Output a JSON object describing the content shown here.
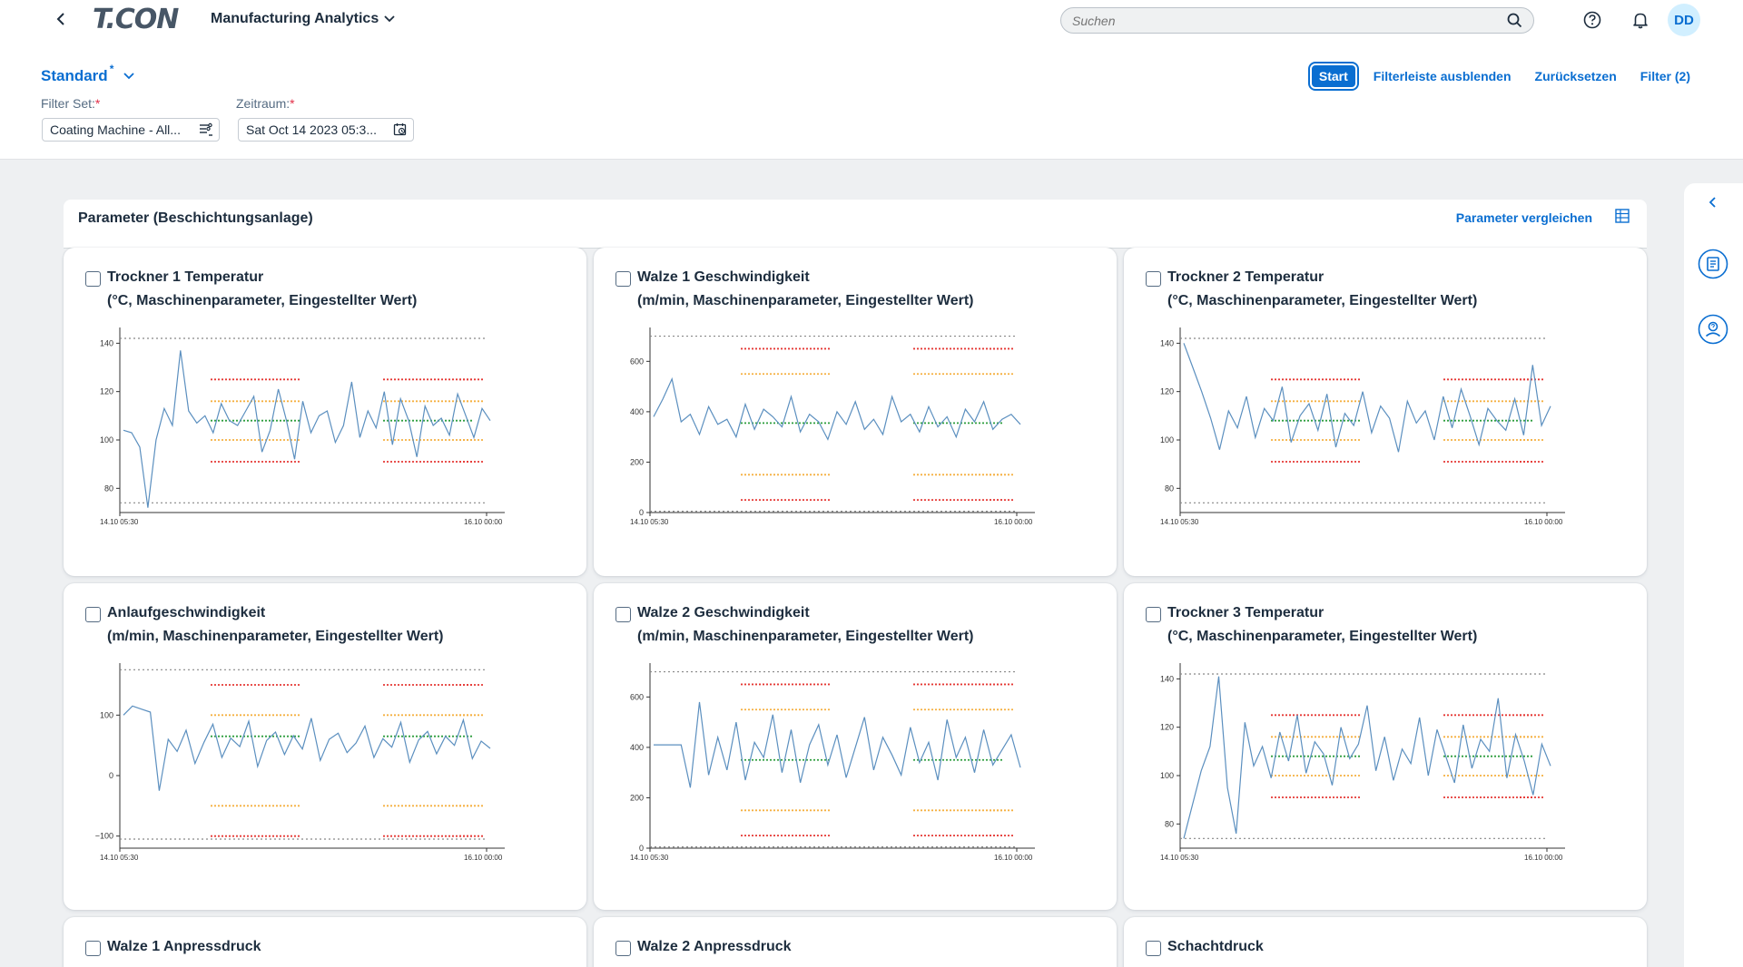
{
  "shell": {
    "logo_text": "T.CON",
    "app_title": "Manufacturing Analytics",
    "search_placeholder": "Suchen",
    "avatar_initials": "DD"
  },
  "header": {
    "variant_name": "Standard",
    "variant_modified_marker": "*",
    "actions": {
      "start": "Start",
      "hide_filterbar": "Filterleiste ausblenden",
      "reset": "Zurücksetzen",
      "filter": "Filter (2)"
    },
    "filters": [
      {
        "label": "Filter Set:",
        "required_marker": "*",
        "value": "Coating Machine - All..."
      },
      {
        "label": "Zeitraum:",
        "required_marker": "*",
        "value": "Sat Oct 14 2023 05:3..."
      }
    ]
  },
  "panel": {
    "title": "Parameter (Beschichtungsanlage)",
    "compare_link": "Parameter vergleichen"
  },
  "colors": {
    "accent": "#0a6ed1",
    "series_line": "#5b8fbf",
    "limit_red": "#e53935",
    "limit_orange": "#f5b041",
    "target_green": "#2e9e3e",
    "reference_gray": "#888888"
  },
  "icons": {
    "back": "chevron-left-icon",
    "title_menu": "chevron-down-icon",
    "search": "search-icon",
    "help": "help-icon",
    "notifications": "bell-icon",
    "value_help": "value-help-icon",
    "calendar": "calendar-icon",
    "table": "table-icon",
    "side_collapse": "chevron-left-icon",
    "side_report": "report-icon",
    "side_user_help": "user-help-icon"
  },
  "cards": [
    {
      "title": "Trockner 1 Temperatur",
      "subtitle": "(°C, Maschinenparameter, Eingestellter Wert)",
      "checked": false
    },
    {
      "title": "Walze 1 Geschwindigkeit",
      "subtitle": "(m/min, Maschinenparameter, Eingestellter Wert)",
      "checked": false
    },
    {
      "title": "Trockner 2 Temperatur",
      "subtitle": "(°C, Maschinenparameter, Eingestellter Wert)",
      "checked": false
    },
    {
      "title": "Anlaufgeschwindigkeit",
      "subtitle": "(m/min, Maschinenparameter, Eingestellter Wert)",
      "checked": false
    },
    {
      "title": "Walze 2 Geschwindigkeit",
      "subtitle": "(m/min, Maschinenparameter, Eingestellter Wert)",
      "checked": false
    },
    {
      "title": "Trockner 3 Temperatur",
      "subtitle": "(°C, Maschinenparameter, Eingestellter Wert)",
      "checked": false
    },
    {
      "title": "Walze 1 Anpressdruck",
      "subtitle": "",
      "checked": false
    },
    {
      "title": "Walze 2 Anpressdruck",
      "subtitle": "",
      "checked": false
    },
    {
      "title": "Schachtdruck",
      "subtitle": "",
      "checked": false
    }
  ],
  "chart_data": [
    {
      "type": "line",
      "x_start": "14.10 05:30",
      "x_end": "16.10 00:00",
      "yticks": [
        80,
        100,
        120,
        140
      ],
      "ylim": [
        70,
        145
      ],
      "reference_lines": [
        142,
        74
      ],
      "limit_bands": [
        {
          "segment": 1,
          "upper_red": 125,
          "upper_orange": 116,
          "target": 108,
          "lower_orange": 100,
          "lower_red": 91
        },
        {
          "segment": 2,
          "upper_red": 125,
          "upper_orange": 116,
          "target": 108,
          "lower_orange": 100,
          "lower_red": 91
        }
      ],
      "series": [
        {
          "values": [
            104,
            103,
            97,
            72,
            100,
            113,
            106,
            137,
            112,
            107,
            110,
            103,
            115,
            108,
            106,
            112,
            118,
            95,
            104,
            121,
            108,
            92,
            116,
            103,
            110,
            112,
            99,
            106,
            124,
            101,
            112,
            105,
            120,
            98,
            117,
            108,
            93,
            114,
            106,
            109,
            102,
            119,
            110,
            101,
            113,
            108
          ]
        }
      ]
    },
    {
      "type": "line",
      "x_start": "14.10 05:30",
      "x_end": "16.10 00:00",
      "yticks": [
        0,
        200,
        400,
        600
      ],
      "ylim": [
        0,
        720
      ],
      "reference_lines": [
        700,
        5
      ],
      "limit_bands": [
        {
          "segment": 1,
          "upper_red": 650,
          "upper_orange": 550,
          "target": 355,
          "lower_orange": 150,
          "lower_red": 50
        },
        {
          "segment": 2,
          "upper_red": 650,
          "upper_orange": 550,
          "target": 355,
          "lower_orange": 150,
          "lower_red": 50
        }
      ],
      "series": [
        {
          "values": [
            380,
            450,
            530,
            360,
            390,
            310,
            420,
            350,
            370,
            300,
            430,
            330,
            410,
            380,
            340,
            460,
            320,
            390,
            360,
            290,
            400,
            350,
            440,
            330,
            370,
            310,
            460,
            360,
            390,
            320,
            420,
            340,
            380,
            300,
            410,
            360,
            440,
            330,
            370,
            390,
            350
          ]
        }
      ]
    },
    {
      "type": "line",
      "x_start": "14.10 05:30",
      "x_end": "16.10 00:00",
      "yticks": [
        80,
        100,
        120,
        140
      ],
      "ylim": [
        70,
        145
      ],
      "reference_lines": [
        142,
        74
      ],
      "limit_bands": [
        {
          "segment": 1,
          "upper_red": 125,
          "upper_orange": 116,
          "target": 108,
          "lower_orange": 100,
          "lower_red": 91
        },
        {
          "segment": 2,
          "upper_red": 125,
          "upper_orange": 116,
          "target": 108,
          "lower_orange": 100,
          "lower_red": 91
        }
      ],
      "series": [
        {
          "values": [
            140,
            130,
            120,
            109,
            96,
            112,
            105,
            118,
            101,
            113,
            108,
            122,
            99,
            110,
            115,
            104,
            119,
            97,
            111,
            106,
            120,
            103,
            114,
            109,
            95,
            116,
            107,
            112,
            100,
            118,
            105,
            121,
            110,
            98,
            113,
            108,
            104,
            117,
            102,
            131,
            106,
            114
          ]
        }
      ]
    },
    {
      "type": "line",
      "x_start": "14.10 05:30",
      "x_end": "16.10 00:00",
      "yticks": [
        -100,
        0,
        100
      ],
      "ylim": [
        -120,
        180
      ],
      "reference_lines": [
        175,
        -105
      ],
      "limit_bands": [
        {
          "segment": 1,
          "upper_red": 150,
          "upper_orange": 100,
          "target": 65,
          "lower_orange": -50,
          "lower_red": -100
        },
        {
          "segment": 2,
          "upper_red": 150,
          "upper_orange": 100,
          "target": 65,
          "lower_orange": -50,
          "lower_red": -100
        }
      ],
      "series": [
        {
          "values": [
            100,
            115,
            110,
            105,
            -25,
            60,
            40,
            75,
            20,
            55,
            85,
            30,
            62,
            48,
            90,
            15,
            58,
            72,
            35,
            66,
            44,
            95,
            25,
            60,
            70,
            38,
            54,
            82,
            30,
            61,
            47,
            88,
            22,
            59,
            73,
            36,
            65,
            50,
            92,
            28,
            57,
            45
          ]
        }
      ]
    },
    {
      "type": "line",
      "x_start": "14.10 05:30",
      "x_end": "16.10 00:00",
      "yticks": [
        0,
        200,
        400,
        600
      ],
      "ylim": [
        0,
        720
      ],
      "reference_lines": [
        700,
        5
      ],
      "limit_bands": [
        {
          "segment": 1,
          "upper_red": 650,
          "upper_orange": 550,
          "target": 350,
          "lower_orange": 150,
          "lower_red": 50
        },
        {
          "segment": 2,
          "upper_red": 650,
          "upper_orange": 550,
          "target": 350,
          "lower_orange": 150,
          "lower_red": 50
        }
      ],
      "series": [
        {
          "values": [
            410,
            410,
            410,
            410,
            240,
            580,
            290,
            440,
            310,
            500,
            270,
            420,
            360,
            530,
            300,
            470,
            260,
            410,
            490,
            330,
            450,
            280,
            400,
            520,
            310,
            440,
            370,
            290,
            480,
            340,
            420,
            270,
            510,
            360,
            440,
            300,
            470,
            330,
            390,
            450,
            320
          ]
        }
      ]
    },
    {
      "type": "line",
      "x_start": "14.10 05:30",
      "x_end": "16.10 00:00",
      "yticks": [
        80,
        100,
        120,
        140
      ],
      "ylim": [
        70,
        145
      ],
      "reference_lines": [
        142,
        74
      ],
      "limit_bands": [
        {
          "segment": 1,
          "upper_red": 125,
          "upper_orange": 116,
          "target": 108,
          "lower_orange": 100,
          "lower_red": 91
        },
        {
          "segment": 2,
          "upper_red": 125,
          "upper_orange": 116,
          "target": 108,
          "lower_orange": 100,
          "lower_red": 91
        }
      ],
      "series": [
        {
          "values": [
            74,
            88,
            102,
            112,
            141,
            95,
            76,
            122,
            104,
            112,
            99,
            118,
            106,
            125,
            101,
            114,
            109,
            96,
            120,
            107,
            113,
            129,
            102,
            116,
            98,
            111,
            105,
            124,
            100,
            119,
            108,
            97,
            121,
            103,
            115,
            110,
            132,
            99,
            117,
            106,
            92,
            113,
            104
          ]
        }
      ]
    }
  ]
}
